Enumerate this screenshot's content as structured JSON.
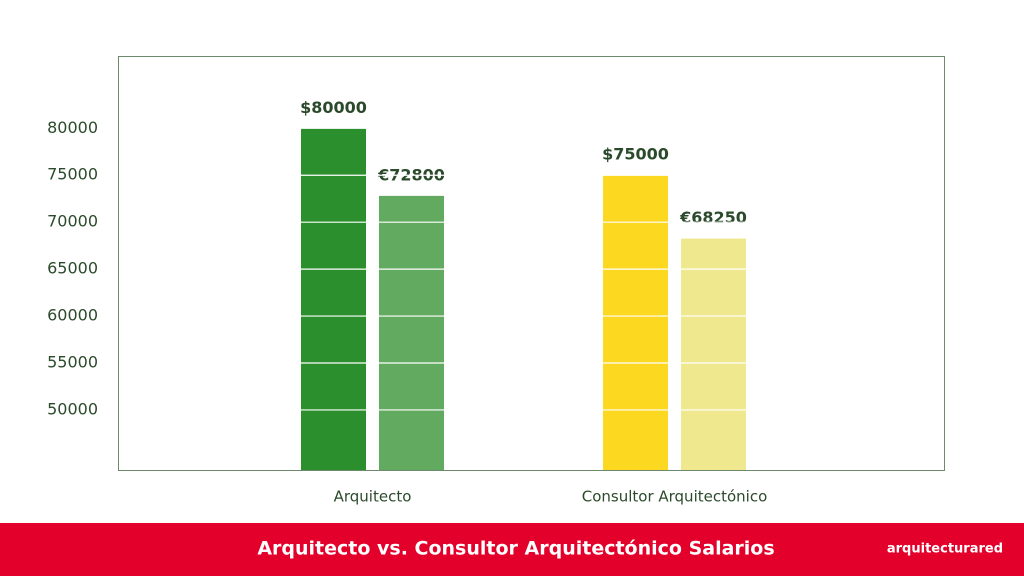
{
  "chart_data": {
    "type": "bar",
    "title": "Arquitecto vs. Consultor Arquitectónico Salarios",
    "brand": "arquitecturared",
    "categories": [
      "Arquitecto",
      "Consultor Arquitectónico"
    ],
    "series": [
      {
        "colors": [
          "#2c8f2e",
          "#fdd820"
        ],
        "values": [
          80000,
          75000
        ],
        "value_labels": [
          "$80000",
          "$75000"
        ]
      },
      {
        "colors": [
          "#62aa5f",
          "#efe88f"
        ],
        "values": [
          72800,
          68250
        ],
        "value_labels": [
          "€72800",
          "€68250"
        ]
      }
    ],
    "ylim": [
      43600,
      87700
    ],
    "yticks": [
      50000,
      55000,
      60000,
      65000,
      70000,
      75000,
      80000
    ],
    "grid": true
  }
}
